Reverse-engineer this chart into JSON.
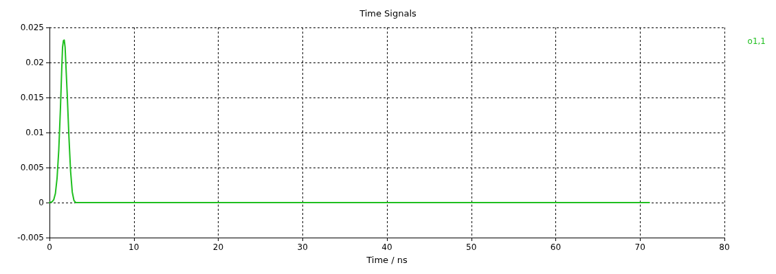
{
  "chart_data": {
    "type": "line",
    "title": "Time Signals",
    "xlabel": "Time / ns",
    "x": [
      0,
      0.3,
      0.5,
      0.7,
      0.9,
      1.1,
      1.3,
      1.45,
      1.55,
      1.65,
      1.75,
      1.85,
      1.95,
      2.1,
      2.3,
      2.5,
      2.7,
      2.9,
      3.1,
      5,
      10,
      20,
      30,
      40,
      50,
      60,
      70,
      71.1
    ],
    "series": [
      {
        "name": "o1,1",
        "color": "#1fbf1f",
        "values": [
          0,
          0.0001,
          0.0004,
          0.0013,
          0.0035,
          0.0075,
          0.0135,
          0.019,
          0.0222,
          0.0231,
          0.0232,
          0.0222,
          0.0195,
          0.0155,
          0.0095,
          0.0045,
          0.0015,
          0.0003,
          0,
          0,
          0,
          0,
          0,
          0,
          0,
          0,
          0,
          0
        ]
      }
    ],
    "xlim": [
      0,
      80
    ],
    "xticks": [
      0,
      10,
      20,
      30,
      40,
      50,
      60,
      70,
      80
    ],
    "ylim": [
      -0.005,
      0.025
    ],
    "yticks": [
      -0.005,
      0,
      0.005,
      0.01,
      0.015,
      0.02,
      0.025
    ],
    "grid": true,
    "legend": "top right",
    "line_style": "solid",
    "marker": "none"
  }
}
